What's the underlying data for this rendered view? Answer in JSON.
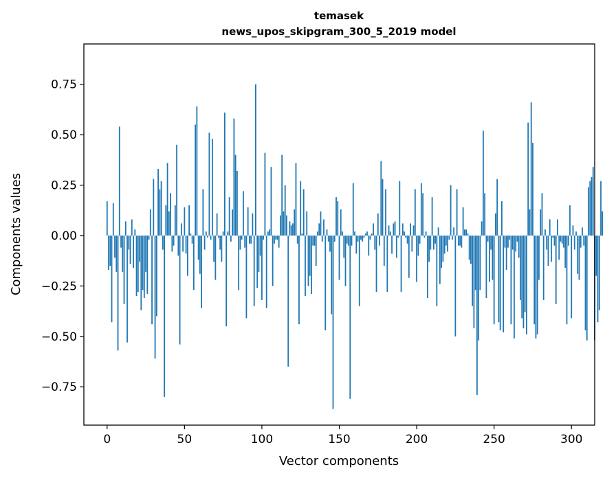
{
  "chart_data": {
    "type": "bar",
    "title_line1": "temasek",
    "title_line2": "news_upos_skipgram_300_5_2019 model",
    "xlabel": "Vector components",
    "ylabel": "Components values",
    "xlim": [
      -15,
      315
    ],
    "ylim": [
      -0.94,
      0.95
    ],
    "xticks": [
      0,
      50,
      100,
      150,
      200,
      250,
      300
    ],
    "xtick_labels": [
      "0",
      "50",
      "100",
      "150",
      "200",
      "250",
      "300"
    ],
    "yticks": [
      -0.75,
      -0.5,
      -0.25,
      0.0,
      0.25,
      0.5,
      0.75
    ],
    "ytick_labels": [
      "−0.75",
      "−0.50",
      "−0.25",
      "0.00",
      "0.25",
      "0.50",
      "0.75"
    ],
    "bar_color": "#1f77b4",
    "values": [
      0.17,
      -0.17,
      -0.15,
      -0.43,
      0.16,
      -0.11,
      -0.18,
      -0.57,
      0.54,
      -0.06,
      -0.18,
      -0.34,
      0.07,
      -0.53,
      -0.07,
      -0.14,
      0.08,
      -0.16,
      0.03,
      -0.3,
      -0.28,
      -0.13,
      -0.37,
      -0.27,
      -0.31,
      -0.18,
      -0.29,
      -0.02,
      0.13,
      -0.44,
      0.28,
      -0.61,
      -0.4,
      0.33,
      0.23,
      0.27,
      -0.07,
      -0.8,
      0.15,
      0.36,
      0.12,
      0.21,
      -0.08,
      -0.05,
      0.15,
      0.45,
      -0.1,
      -0.54,
      0.06,
      -0.08,
      0.14,
      -0.09,
      -0.2,
      0.15,
      0.01,
      -0.04,
      -0.27,
      0.55,
      0.64,
      -0.12,
      -0.19,
      -0.36,
      0.23,
      -0.07,
      0.02,
      -0.01,
      0.51,
      -0.02,
      0.48,
      -0.13,
      -0.22,
      0.11,
      -0.01,
      -0.07,
      -0.13,
      0.02,
      0.61,
      -0.45,
      0.02,
      0.19,
      -0.03,
      0.13,
      0.58,
      0.4,
      0.32,
      -0.27,
      -0.07,
      -0.02,
      0.22,
      -0.06,
      -0.41,
      0.14,
      -0.04,
      -0.04,
      0.11,
      -0.35,
      0.75,
      -0.26,
      -0.18,
      -0.1,
      -0.32,
      -0.02,
      0.41,
      -0.36,
      0.02,
      0.03,
      0.34,
      -0.25,
      -0.04,
      -0.02,
      -0.02,
      -0.06,
      0.1,
      0.4,
      0.12,
      0.25,
      0.1,
      -0.65,
      0.07,
      0.05,
      0.06,
      0.13,
      0.36,
      -0.04,
      -0.44,
      0.27,
      0.01,
      0.23,
      -0.3,
      0.12,
      -0.25,
      -0.2,
      -0.29,
      -0.05,
      -0.05,
      -0.15,
      0.02,
      0.06,
      0.12,
      -0.03,
      0.08,
      -0.47,
      0.03,
      -0.03,
      -0.08,
      -0.39,
      -0.86,
      -0.03,
      0.19,
      0.17,
      -0.22,
      0.13,
      0.02,
      -0.11,
      -0.25,
      -0.04,
      -0.05,
      -0.81,
      -0.05,
      0.26,
      0.02,
      -0.09,
      -0.03,
      -0.35,
      -0.02,
      -0.03,
      -0.01,
      0.01,
      0.02,
      -0.1,
      -0.02,
      0.01,
      0.06,
      -0.07,
      -0.28,
      0.11,
      -0.05,
      0.37,
      0.28,
      -0.15,
      0.23,
      -0.28,
      0.05,
      0.02,
      -0.09,
      0.06,
      0.07,
      -0.11,
      -0.01,
      0.27,
      -0.28,
      0.06,
      0.02,
      -0.01,
      -0.04,
      -0.21,
      0.06,
      -0.08,
      0.05,
      0.23,
      -0.23,
      -0.1,
      -0.04,
      0.26,
      0.21,
      -0.01,
      0.02,
      -0.31,
      -0.13,
      -0.07,
      0.19,
      -0.07,
      -0.04,
      -0.35,
      0.04,
      -0.24,
      -0.16,
      -0.13,
      -0.09,
      -0.05,
      -0.08,
      -0.02,
      0.25,
      -0.02,
      0.04,
      -0.5,
      0.23,
      -0.05,
      -0.05,
      -0.06,
      0.14,
      0.03,
      0.03,
      0.01,
      -0.12,
      -0.14,
      -0.35,
      -0.46,
      -0.27,
      -0.79,
      -0.52,
      -0.27,
      0.07,
      0.52,
      0.21,
      -0.31,
      -0.03,
      -0.23,
      -0.07,
      -0.22,
      -0.44,
      0.11,
      0.28,
      -0.43,
      -0.47,
      0.17,
      -0.48,
      -0.06,
      -0.17,
      -0.06,
      -0.02,
      -0.44,
      -0.07,
      -0.51,
      -0.08,
      -0.03,
      -0.11,
      -0.32,
      -0.41,
      -0.46,
      -0.38,
      -0.49,
      0.56,
      0.13,
      0.66,
      0.46,
      -0.44,
      -0.51,
      -0.49,
      -0.22,
      0.13,
      0.21,
      -0.32,
      0.03,
      -0.07,
      -0.15,
      0.08,
      -0.13,
      -0.01,
      -0.05,
      -0.34,
      0.08,
      -0.12,
      -0.03,
      -0.04,
      -0.06,
      -0.16,
      -0.44,
      -0.05,
      0.15,
      -0.41,
      0.05,
      -0.07,
      0.02,
      -0.19,
      -0.22,
      -0.06,
      0.04,
      -0.05,
      -0.47,
      -0.52,
      0.24,
      0.27,
      0.29,
      0.34,
      -0.52,
      -0.2,
      -0.43,
      -0.37,
      0.27,
      0.12
    ]
  }
}
